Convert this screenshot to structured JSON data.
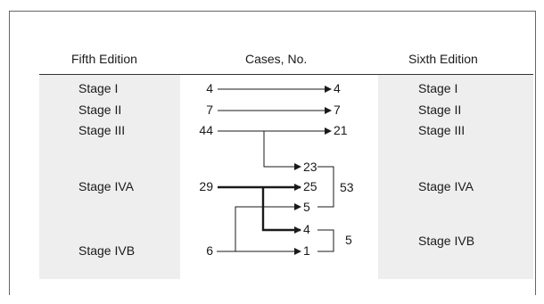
{
  "headers": {
    "fifth": "Fifth Edition",
    "cases": "Cases, No.",
    "sixth": "Sixth Edition"
  },
  "fifth_stages": [
    "Stage I",
    "Stage II",
    "Stage III",
    "Stage IVA",
    "Stage IVB"
  ],
  "sixth_stages": [
    "Stage I",
    "Stage II",
    "Stage III",
    "Stage IVA",
    "Stage IVB"
  ],
  "left_counts": [
    "4",
    "7",
    "44",
    "29",
    "6"
  ],
  "right_counts": [
    "4",
    "7",
    "21",
    "23",
    "25",
    "5",
    "4",
    "1"
  ],
  "group_totals": {
    "iva": "53",
    "ivb": "5"
  }
}
